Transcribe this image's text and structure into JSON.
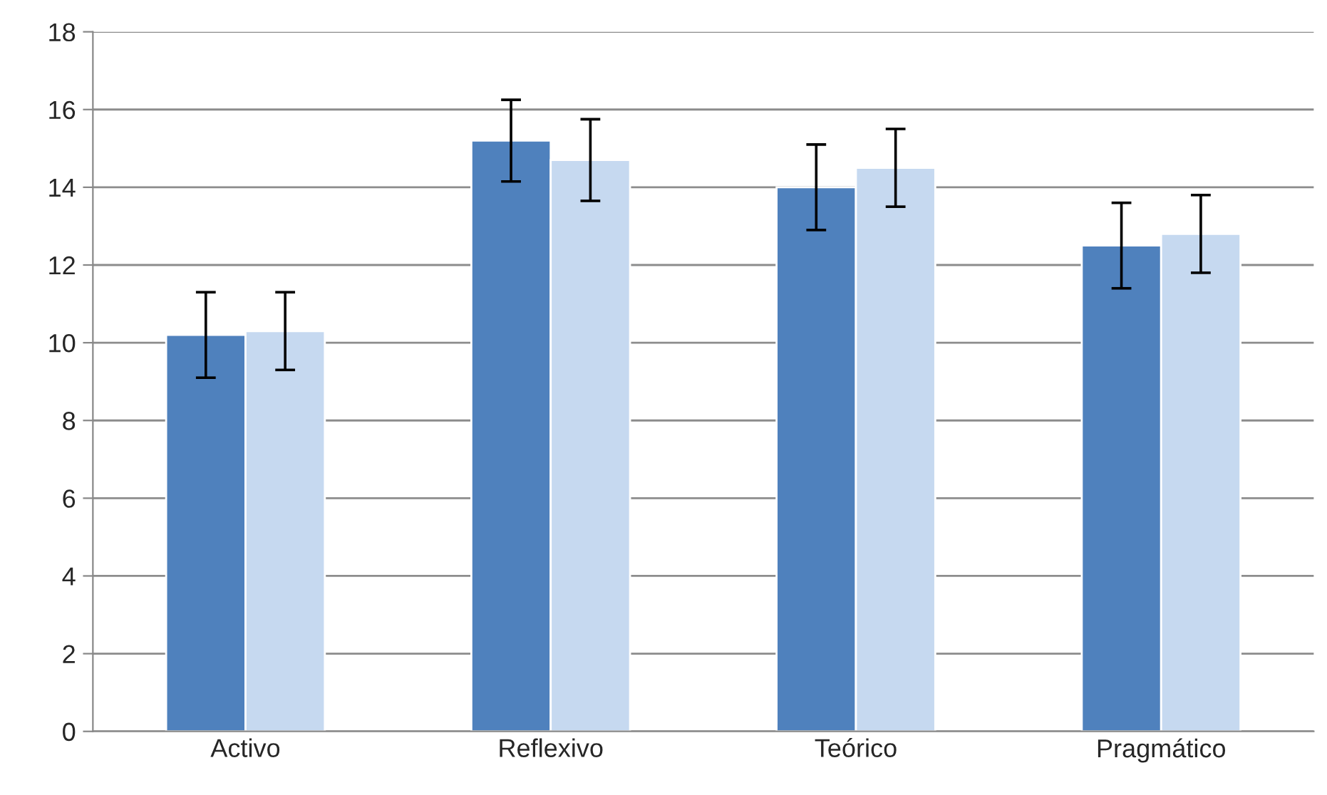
{
  "chart_data": {
    "type": "bar",
    "categories": [
      "Activo",
      "Reflexivo",
      "Teórico",
      "Pragmático"
    ],
    "series": [
      {
        "color": "#4f81bd",
        "values": [
          10.2,
          15.2,
          14.0,
          12.5
        ],
        "errors": [
          1.1,
          1.05,
          1.1,
          1.1
        ]
      },
      {
        "color": "#c6d9f0",
        "values": [
          10.3,
          14.7,
          14.5,
          12.8
        ],
        "errors": [
          1.0,
          1.05,
          1.0,
          1.0
        ]
      }
    ],
    "ylim": [
      0,
      18
    ],
    "yticks": [
      0,
      2,
      4,
      6,
      8,
      10,
      12,
      14,
      16,
      18
    ],
    "grid": "y"
  }
}
